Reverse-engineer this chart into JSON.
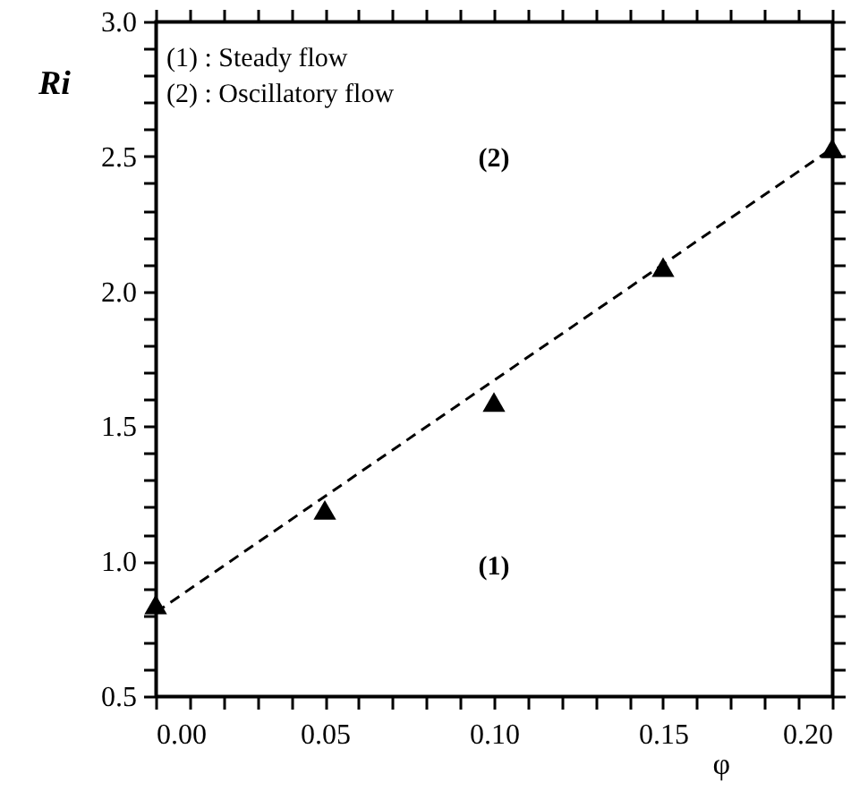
{
  "chart_data": {
    "type": "scatter",
    "xlabel": "φ",
    "ylabel": "Ri",
    "xlim": [
      0,
      0.2
    ],
    "ylim": [
      0.5,
      3.0
    ],
    "xticks": [
      {
        "value": 0,
        "label": "0.00"
      },
      {
        "value": 0.01,
        "label": null
      },
      {
        "value": 0.02,
        "label": null
      },
      {
        "value": 0.03,
        "label": null
      },
      {
        "value": 0.04,
        "label": null
      },
      {
        "value": 0.05,
        "label": "0.05"
      },
      {
        "value": 0.06,
        "label": null
      },
      {
        "value": 0.07,
        "label": null
      },
      {
        "value": 0.08,
        "label": null
      },
      {
        "value": 0.09,
        "label": null
      },
      {
        "value": 0.1,
        "label": "0.10"
      },
      {
        "value": 0.11,
        "label": null
      },
      {
        "value": 0.12,
        "label": null
      },
      {
        "value": 0.13,
        "label": null
      },
      {
        "value": 0.14,
        "label": null
      },
      {
        "value": 0.15,
        "label": "0.15"
      },
      {
        "value": 0.16,
        "label": null
      },
      {
        "value": 0.17,
        "label": null
      },
      {
        "value": 0.18,
        "label": null
      },
      {
        "value": 0.19,
        "label": null
      },
      {
        "value": 0.2,
        "label": "0.20"
      }
    ],
    "yticks": [
      {
        "value": 0.5,
        "label": "0.5"
      },
      {
        "value": 0.6,
        "label": null
      },
      {
        "value": 0.7,
        "label": null
      },
      {
        "value": 0.8,
        "label": null
      },
      {
        "value": 0.9,
        "label": null
      },
      {
        "value": 1.0,
        "label": "1.0"
      },
      {
        "value": 1.1,
        "label": null
      },
      {
        "value": 1.2,
        "label": null
      },
      {
        "value": 1.3,
        "label": null
      },
      {
        "value": 1.4,
        "label": null
      },
      {
        "value": 1.5,
        "label": "1.5"
      },
      {
        "value": 1.6,
        "label": null
      },
      {
        "value": 1.7,
        "label": null
      },
      {
        "value": 1.8,
        "label": null
      },
      {
        "value": 1.9,
        "label": null
      },
      {
        "value": 2.0,
        "label": "2.0"
      },
      {
        "value": 2.1,
        "label": null
      },
      {
        "value": 2.2,
        "label": null
      },
      {
        "value": 2.3,
        "label": null
      },
      {
        "value": 2.4,
        "label": null
      },
      {
        "value": 2.5,
        "label": "2.5"
      },
      {
        "value": 2.6,
        "label": null
      },
      {
        "value": 2.7,
        "label": null
      },
      {
        "value": 2.8,
        "label": null
      },
      {
        "value": 2.9,
        "label": null
      },
      {
        "value": 3.0,
        "label": "3.0"
      }
    ],
    "grid": false,
    "x": [
      0,
      0.05,
      0.1,
      0.15,
      0.2
    ],
    "series": [
      {
        "type": "scatter",
        "color": "#000000",
        "marker": "triangle",
        "values": [
          0.84,
          1.19,
          1.59,
          2.09,
          2.53
        ]
      },
      {
        "type": "line",
        "color": "#000000",
        "line_style": "dashed",
        "marker": "none",
        "x": [
          0,
          0.2
        ],
        "values": [
          0.81,
          2.53
        ]
      }
    ],
    "annotations": [
      "(1) : Steady flow",
      "(2) : Oscillatory flow",
      "(2)",
      "(1)"
    ]
  }
}
